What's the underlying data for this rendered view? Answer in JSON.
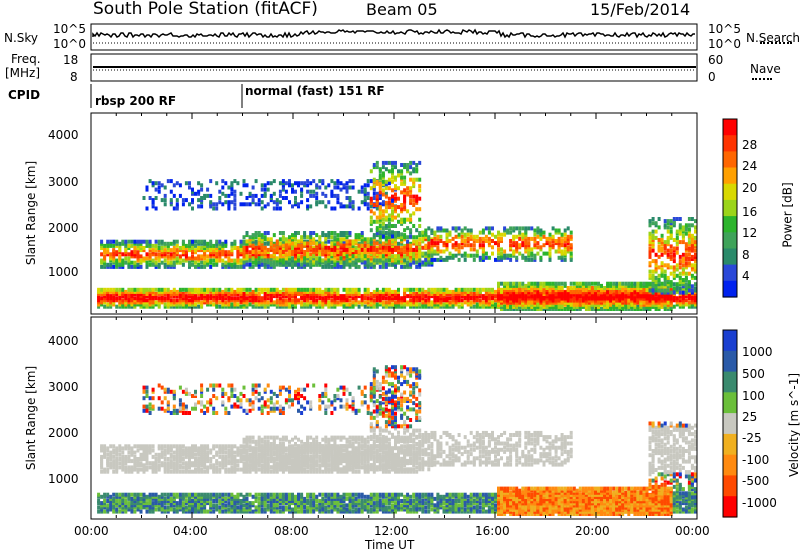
{
  "header": {
    "station": "South Pole Station (fitACF)",
    "beam": "Beam 05",
    "date": "15/Feb/2014"
  },
  "top_panels": {
    "nsky_label": "N.Sky",
    "nsearch_label": "N.Search",
    "nsky_ticks": [
      "10^5",
      "10^0"
    ],
    "nsearch_ticks": [
      "10^5",
      "10^0"
    ],
    "freq_label_line1": "Freq.",
    "freq_label_line2": "[MHz]",
    "freq_ticks": [
      "18",
      "8"
    ],
    "nave_label": "Nave",
    "nave_ticks": [
      "60",
      "0"
    ],
    "cpid_label": "CPID",
    "cpid_segments": [
      {
        "label": "rbsp 200 RF",
        "start_hour": 0
      },
      {
        "label": "normal (fast) 151 RF",
        "start_hour": 6
      }
    ]
  },
  "chart_data": [
    {
      "type": "heatmap",
      "name": "power",
      "xlabel": "",
      "ylabel": "Slant Range [km]",
      "x_range_hours": [
        0,
        24
      ],
      "ylim": [
        300,
        4600
      ],
      "y_ticks": [
        "4000",
        "3000",
        "2000",
        "1000"
      ],
      "colorbar": {
        "label": "Power [dB]",
        "ticks": [
          "28",
          "24",
          "20",
          "16",
          "12",
          "8",
          "4"
        ],
        "colors": [
          "#0022ee",
          "#2a48d8",
          "#2a8a6a",
          "#3fa35a",
          "#2cb42c",
          "#9bd41a",
          "#d8d800",
          "#ffa000",
          "#ff6600",
          "#ff3300",
          "#ff0000"
        ]
      }
    },
    {
      "type": "heatmap",
      "name": "velocity",
      "xlabel": "Time UT",
      "ylabel": "Slant Range [km]",
      "x_range_hours": [
        0,
        24
      ],
      "x_ticks": [
        "00:00",
        "04:00",
        "08:00",
        "12:00",
        "16:00",
        "20:00",
        "00:00"
      ],
      "ylim": [
        300,
        4600
      ],
      "y_ticks": [
        "4000",
        "3000",
        "2000",
        "1000"
      ],
      "colorbar": {
        "label": "Velocity [m s^-1]",
        "ticks": [
          "1000",
          "500",
          "100",
          "25",
          "-25",
          "-100",
          "-500",
          "-1000"
        ],
        "colors": [
          "#1a3fd0",
          "#2a5aa8",
          "#3a8a6e",
          "#6bbf3a",
          "#c8c8c0",
          "#f0b020",
          "#ff8a10",
          "#ff4a00",
          "#ff0000"
        ]
      }
    }
  ]
}
